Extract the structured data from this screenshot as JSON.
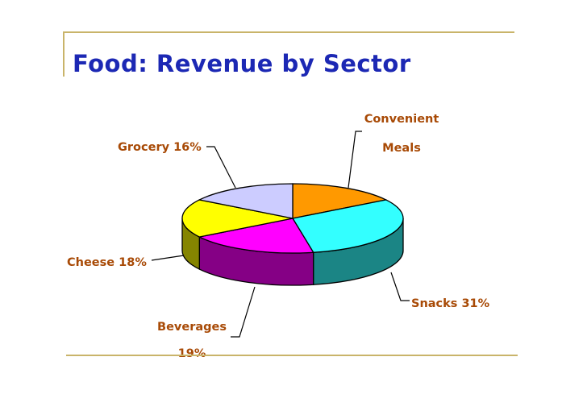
{
  "slide": {
    "title": "Food: Revenue by Sector"
  },
  "chart_data": {
    "type": "pie",
    "title": "",
    "slices": [
      {
        "label": "Convenient Meals",
        "label_lines": [
          "Convenient",
          "Meals"
        ],
        "value": 16,
        "color": "#ff9900"
      },
      {
        "label": "Snacks",
        "label_lines": [
          "Snacks 31%"
        ],
        "value": 31,
        "color": "#33ffff"
      },
      {
        "label": "Beverages",
        "label_lines": [
          "Beverages",
          "19%"
        ],
        "value": 19,
        "color": "#ff00ff"
      },
      {
        "label": "Cheese",
        "label_lines": [
          "Cheese 18%"
        ],
        "value": 18,
        "color": "#ffff00"
      },
      {
        "label": "Grocery",
        "label_lines": [
          "Grocery 16%"
        ],
        "value": 16,
        "color": "#ccccff"
      }
    ]
  }
}
